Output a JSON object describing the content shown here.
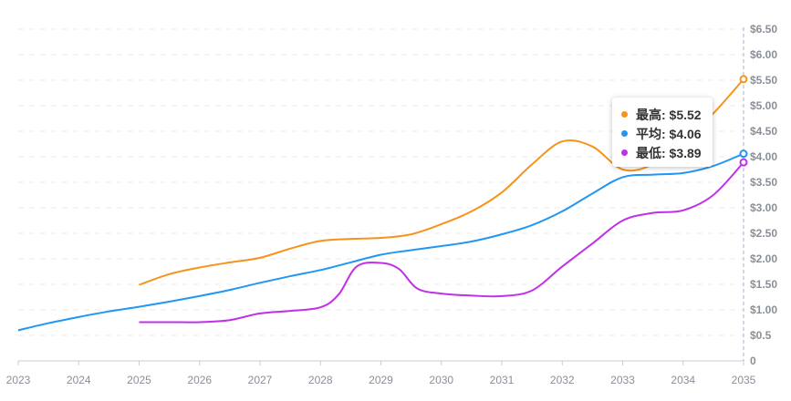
{
  "chart_data": {
    "type": "line",
    "x_ticks": [
      "2023",
      "2024",
      "2025",
      "2026",
      "2027",
      "2028",
      "2029",
      "2030",
      "2031",
      "2032",
      "2033",
      "2034",
      "2035"
    ],
    "y_ticks": [
      "0",
      "$0.5",
      "$1.00",
      "$1.50",
      "$2.00",
      "$2.50",
      "$3.00",
      "$3.50",
      "$4.00",
      "$4.50",
      "$5.00",
      "$5.50",
      "$6.00",
      "$6.50"
    ],
    "xlim": [
      2023,
      2035
    ],
    "ylim": [
      0,
      6.5
    ],
    "grid": true,
    "series": [
      {
        "name": "最高",
        "color": "#f7931a",
        "x": [
          2025,
          2025.5,
          2026,
          2026.5,
          2027,
          2027.5,
          2028,
          2028.5,
          2029,
          2029.5,
          2030,
          2030.5,
          2031,
          2031.5,
          2032,
          2032.5,
          2033,
          2033.5,
          2034,
          2034.5,
          2035
        ],
        "y": [
          1.49,
          1.7,
          1.83,
          1.93,
          2.02,
          2.2,
          2.35,
          2.39,
          2.41,
          2.48,
          2.68,
          2.93,
          3.3,
          3.85,
          4.3,
          4.2,
          3.75,
          3.85,
          4.3,
          4.85,
          5.52
        ]
      },
      {
        "name": "平均",
        "color": "#2196f3",
        "x": [
          2023,
          2023.5,
          2024,
          2024.5,
          2025,
          2025.5,
          2026,
          2026.5,
          2027,
          2027.5,
          2028,
          2028.5,
          2029,
          2029.5,
          2030,
          2030.5,
          2031,
          2031.5,
          2032,
          2032.5,
          2033,
          2033.5,
          2034,
          2034.5,
          2035
        ],
        "y": [
          0.6,
          0.74,
          0.86,
          0.97,
          1.06,
          1.16,
          1.27,
          1.39,
          1.53,
          1.66,
          1.78,
          1.93,
          2.08,
          2.17,
          2.25,
          2.34,
          2.48,
          2.66,
          2.93,
          3.28,
          3.6,
          3.65,
          3.68,
          3.82,
          4.06
        ]
      },
      {
        "name": "最低",
        "color": "#c030e8",
        "x": [
          2025,
          2025.5,
          2026,
          2026.5,
          2027,
          2027.5,
          2028,
          2028.3,
          2028.6,
          2029,
          2029.3,
          2029.6,
          2030,
          2030.5,
          2031,
          2031.5,
          2032,
          2032.5,
          2033,
          2033.5,
          2034,
          2034.5,
          2035
        ],
        "y": [
          0.76,
          0.76,
          0.76,
          0.8,
          0.93,
          0.98,
          1.05,
          1.3,
          1.85,
          1.92,
          1.8,
          1.42,
          1.32,
          1.28,
          1.27,
          1.38,
          1.85,
          2.3,
          2.75,
          2.9,
          2.95,
          3.25,
          3.89
        ]
      }
    ]
  },
  "tooltip": {
    "rows": [
      {
        "label": "最高: $5.52",
        "color": "#f7931a"
      },
      {
        "label": "平均: $4.06",
        "color": "#2196f3"
      },
      {
        "label": "最低: $3.89",
        "color": "#c030e8"
      }
    ]
  }
}
